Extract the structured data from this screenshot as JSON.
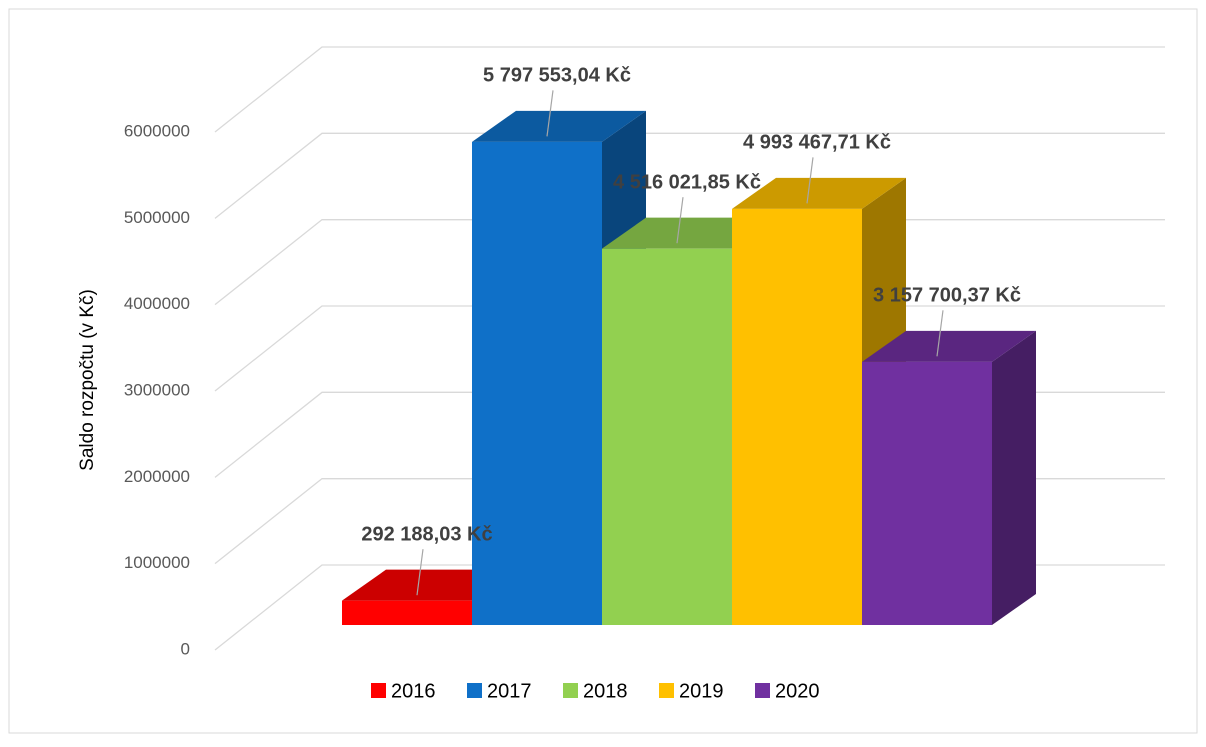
{
  "chart_data": {
    "type": "bar3d",
    "y_label": "Saldo rozpočtu (v Kč)",
    "series": [
      {
        "name": "2016",
        "color": "#ff0000",
        "values": [
          292188.03
        ],
        "value_labels": [
          "292 188,03 Kč"
        ]
      },
      {
        "name": "2017",
        "color": "#0f70c8",
        "values": [
          5797553.04
        ],
        "value_labels": [
          "5 797 553,04 Kč"
        ]
      },
      {
        "name": "2018",
        "color": "#92d050",
        "values": [
          4516021.85
        ],
        "value_labels": [
          "4 516 021,85 Kč"
        ]
      },
      {
        "name": "2019",
        "color": "#ffc000",
        "values": [
          4993467.71
        ],
        "value_labels": [
          "4 993 467,71 Kč"
        ]
      },
      {
        "name": "2020",
        "color": "#7030a0",
        "values": [
          3157700.37
        ],
        "value_labels": [
          "3 157 700,37 Kč"
        ]
      }
    ],
    "ylim": [
      0,
      6000000
    ],
    "yticks": [
      0,
      1000000,
      2000000,
      3000000,
      4000000,
      5000000,
      6000000
    ],
    "grid": true,
    "legend": "bottom"
  }
}
